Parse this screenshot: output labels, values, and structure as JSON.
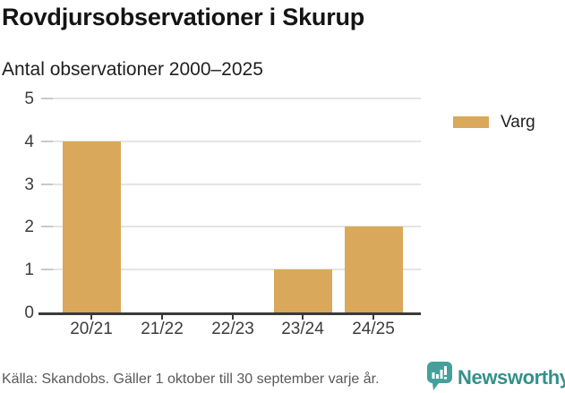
{
  "header": {
    "title": "Rovdjursobservationer i Skurup",
    "subtitle": "Antal observationer 2000–2025"
  },
  "chart_data": {
    "type": "bar",
    "title": "Rovdjursobservationer i Skurup",
    "subtitle": "Antal observationer 2000–2025",
    "categories": [
      "20/21",
      "21/22",
      "22/23",
      "23/24",
      "24/25"
    ],
    "series": [
      {
        "name": "Varg",
        "values": [
          4,
          0,
          0,
          1,
          2
        ]
      }
    ],
    "xlabel": "",
    "ylabel": "",
    "ylim": [
      0,
      5
    ],
    "yticks": [
      0,
      1,
      2,
      3,
      4,
      5
    ],
    "grid": "horizontal",
    "legend_position": "right",
    "bar_color": "#d9a85a"
  },
  "legend": {
    "label": "Varg",
    "swatch_color": "#d9a85a"
  },
  "footer": {
    "source": "Källa: Skandobs. Gäller 1 oktober till 30 september varje år.",
    "brand": "Newsworthy",
    "brand_color": "#33918b",
    "brand_icon": "speech-bubble-bar-chart-icon"
  },
  "colors": {
    "bar": "#d9a85a",
    "axis": "#3a3a3a",
    "gridline": "#e4e4e4",
    "teal": "#44a09a"
  }
}
